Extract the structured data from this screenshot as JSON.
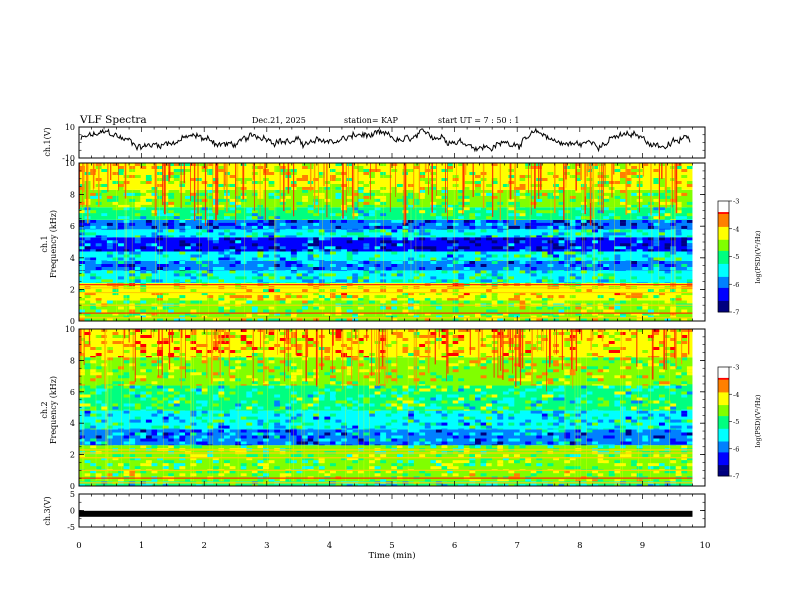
{
  "header": {
    "title": "VLF Spectra",
    "date": "Dec.21, 2025",
    "station": "station= KAP",
    "start": "start  UT =   7 : 50 : 1"
  },
  "colors": {
    "spectrum": [
      "#00007f",
      "#0000ff",
      "#0080ff",
      "#00ffff",
      "#00ff80",
      "#80ff00",
      "#ffff00",
      "#ff8000",
      "#ff0000",
      "#ffffff"
    ],
    "trace": "#000000"
  },
  "chart_data": [
    {
      "type": "line",
      "name": "ch1-waveform",
      "ylabel": "ch.1(V)",
      "ylim": [
        -10,
        10
      ],
      "yticks": [
        "10",
        "-10"
      ],
      "xlim": [
        0,
        10
      ],
      "series": [
        {
          "name": "ch.1",
          "description": "noisy voltage trace oscillating roughly between -5 and 8 V"
        }
      ]
    },
    {
      "type": "heatmap",
      "name": "ch1-spectrogram",
      "ylabel": "ch.1\nFrequency (kHz)",
      "ylim": [
        0,
        10
      ],
      "yticks": [
        "0",
        "2",
        "4",
        "6",
        "8",
        "10"
      ],
      "xlim": [
        0,
        9.8
      ],
      "bands_khz": [
        {
          "from": 0.0,
          "to": 1.3,
          "level": -4.6
        },
        {
          "from": 1.3,
          "to": 2.4,
          "level": -4.2
        },
        {
          "from": 2.4,
          "to": 3.2,
          "level": -5.3
        },
        {
          "from": 3.2,
          "to": 3.8,
          "level": -5.9
        },
        {
          "from": 3.8,
          "to": 4.4,
          "level": -5.4
        },
        {
          "from": 4.4,
          "to": 5.3,
          "level": -6.3
        },
        {
          "from": 5.3,
          "to": 5.8,
          "level": -5.4
        },
        {
          "from": 5.8,
          "to": 6.4,
          "level": -6.1
        },
        {
          "from": 6.4,
          "to": 7.2,
          "level": -5.0
        },
        {
          "from": 7.2,
          "to": 8.3,
          "level": -4.6
        },
        {
          "from": 8.3,
          "to": 10.0,
          "level": -4.3
        }
      ],
      "colorbar": {
        "label": "log(PSD)(V²/Hz)",
        "min": -7,
        "max": -3,
        "ticks": [
          "-3",
          "-4",
          "-5",
          "-6",
          "-7"
        ]
      }
    },
    {
      "type": "heatmap",
      "name": "ch2-spectrogram",
      "ylabel": "ch.2\nFrequency (kHz)",
      "ylim": [
        0,
        10
      ],
      "yticks": [
        "0",
        "2",
        "4",
        "6",
        "8",
        "10"
      ],
      "xlim": [
        0,
        9.8
      ],
      "bands_khz": [
        {
          "from": 0.0,
          "to": 0.3,
          "level": -5.2
        },
        {
          "from": 0.3,
          "to": 1.0,
          "level": -4.5
        },
        {
          "from": 1.0,
          "to": 2.6,
          "level": -4.7
        },
        {
          "from": 2.6,
          "to": 3.6,
          "level": -5.9
        },
        {
          "from": 3.6,
          "to": 4.8,
          "level": -5.4
        },
        {
          "from": 4.8,
          "to": 6.4,
          "level": -5.0
        },
        {
          "from": 6.4,
          "to": 8.2,
          "level": -4.4
        },
        {
          "from": 8.2,
          "to": 10.0,
          "level": -4.0
        }
      ],
      "colorbar": {
        "label": "log(PSD)(V²/Hz)",
        "min": -7,
        "max": -3,
        "ticks": [
          "-3",
          "-4",
          "-5",
          "-6",
          "-7"
        ]
      }
    },
    {
      "type": "line",
      "name": "ch3-waveform",
      "ylabel": "ch.3(V)",
      "ylim": [
        -5,
        5
      ],
      "yticks": [
        "5",
        "0",
        "-5"
      ],
      "xlim": [
        0,
        10
      ],
      "series": [
        {
          "name": "ch.3",
          "description": "flat thick trace near -1 V across the record"
        }
      ],
      "level": -1.0
    }
  ],
  "xaxis": {
    "label": "Time (min)",
    "ticks": [
      "0",
      "1",
      "2",
      "3",
      "4",
      "5",
      "6",
      "7",
      "8",
      "9",
      "10"
    ]
  }
}
